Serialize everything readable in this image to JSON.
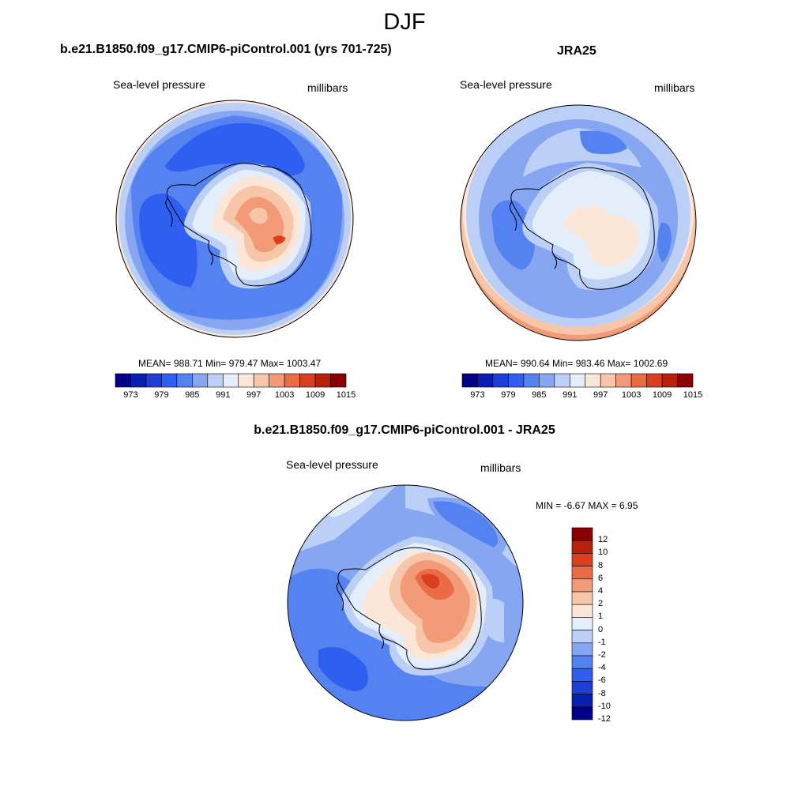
{
  "main_title": "DJF",
  "palette": [
    "#00008b",
    "#0a1fb0",
    "#1e3fd6",
    "#2f5ff0",
    "#5482f0",
    "#86a6f2",
    "#bcd0f7",
    "#e4eefb",
    "#fbe6d8",
    "#f7c5a8",
    "#f39a78",
    "#ea6c45",
    "#d8401f",
    "#b8200c",
    "#8b0000"
  ],
  "diff_palette": [
    "#00008b",
    "#0a1fb0",
    "#1e3fd6",
    "#2f5ff0",
    "#5482f0",
    "#86a6f2",
    "#bcd0f7",
    "#e4eefb",
    "#fbe6d8",
    "#f7c5a8",
    "#f39a78",
    "#ea6c45",
    "#d8401f",
    "#b8200c",
    "#8b0000"
  ],
  "panels": {
    "model": {
      "title": "b.e21.B1850.f09_g17.CMIP6-piControl.001 (yrs 701-725)",
      "variable": "Sea-level pressure",
      "units": "millibars",
      "stats": "MEAN= 988.71  Min= 979.47  Max= 1003.47",
      "colorbar_labels": [
        "973",
        "979",
        "985",
        "991",
        "997",
        "1003",
        "1009",
        "1015"
      ]
    },
    "obs": {
      "title": "JRA25",
      "variable": "Sea-level pressure",
      "units": "millibars",
      "stats": "MEAN= 990.64  Min= 983.46  Max= 1002.69",
      "colorbar_labels": [
        "973",
        "979",
        "985",
        "991",
        "997",
        "1003",
        "1009",
        "1015"
      ]
    },
    "diff": {
      "title": "b.e21.B1850.f09_g17.CMIP6-piControl.001 - JRA25",
      "variable": "Sea-level pressure",
      "units": "millibars",
      "stats": "MIN =  -6.67 MAX =   6.95",
      "colorbar_labels": [
        "12",
        "10",
        "8",
        "6",
        "4",
        "2",
        "1",
        "0",
        "-1",
        "-2",
        "-4",
        "-6",
        "-8",
        "-10",
        "-12"
      ]
    }
  }
}
